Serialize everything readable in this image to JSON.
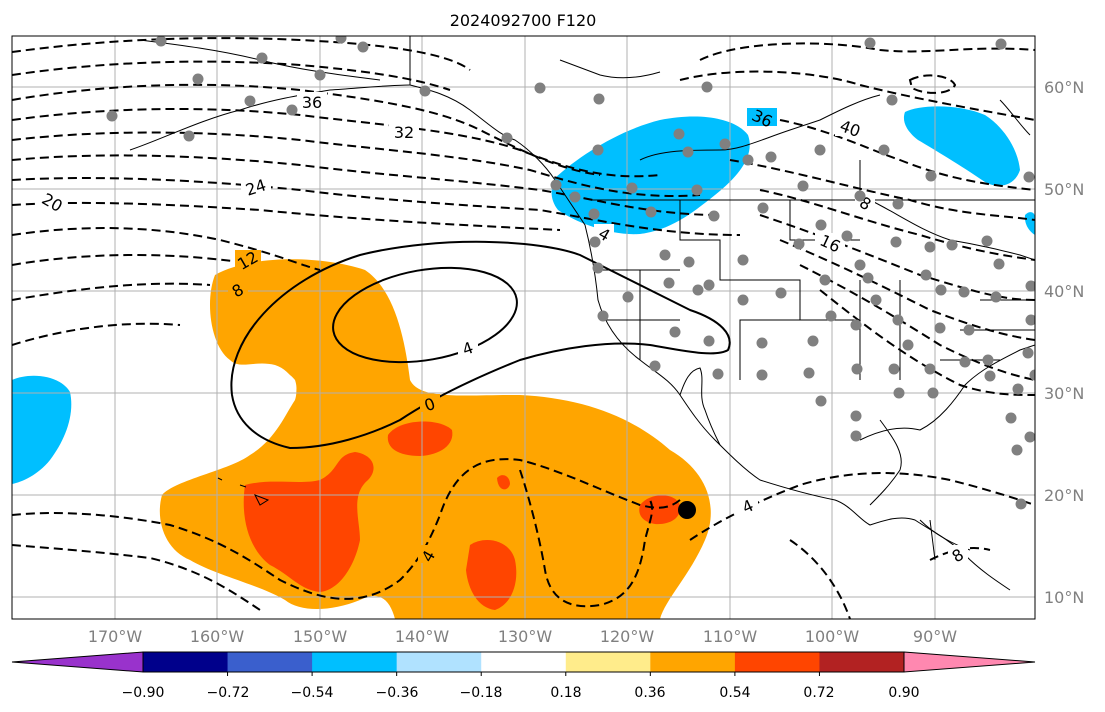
{
  "title": "2024092700 F120",
  "lon_labels": [
    "170°W",
    "160°W",
    "150°W",
    "140°W",
    "130°W",
    "120°W",
    "110°W",
    "100°W",
    "90°W"
  ],
  "lat_labels": [
    "60°N",
    "50°N",
    "40°N",
    "30°N",
    "20°N",
    "10°N"
  ],
  "colorbar": {
    "colors": [
      "#9932cc",
      "#00008b",
      "#3a5fcd",
      "#00bfff",
      "#b0e2ff",
      "#ffffff",
      "#ffec8b",
      "#ffa500",
      "#ff4500",
      "#b22222",
      "#ff88b0"
    ],
    "labels": [
      "−0.90",
      "−0.72",
      "−0.54",
      "−0.36",
      "−0.18",
      "0.18",
      "0.36",
      "0.54",
      "0.72",
      "0.90"
    ]
  },
  "contour_labels": {
    "c36a": "36",
    "c32": "32",
    "c24": "24",
    "c20": "20",
    "c12": "12",
    "c8": "8",
    "c4a": "4",
    "c0": "0",
    "c4b": "4",
    "c4c": "4",
    "c4d": "4",
    "c36b": "36",
    "c40": "40",
    "c8b": "8",
    "c16": "16",
    "c8c": "8"
  },
  "marker_color": "#000000",
  "station_color": "#808080"
}
